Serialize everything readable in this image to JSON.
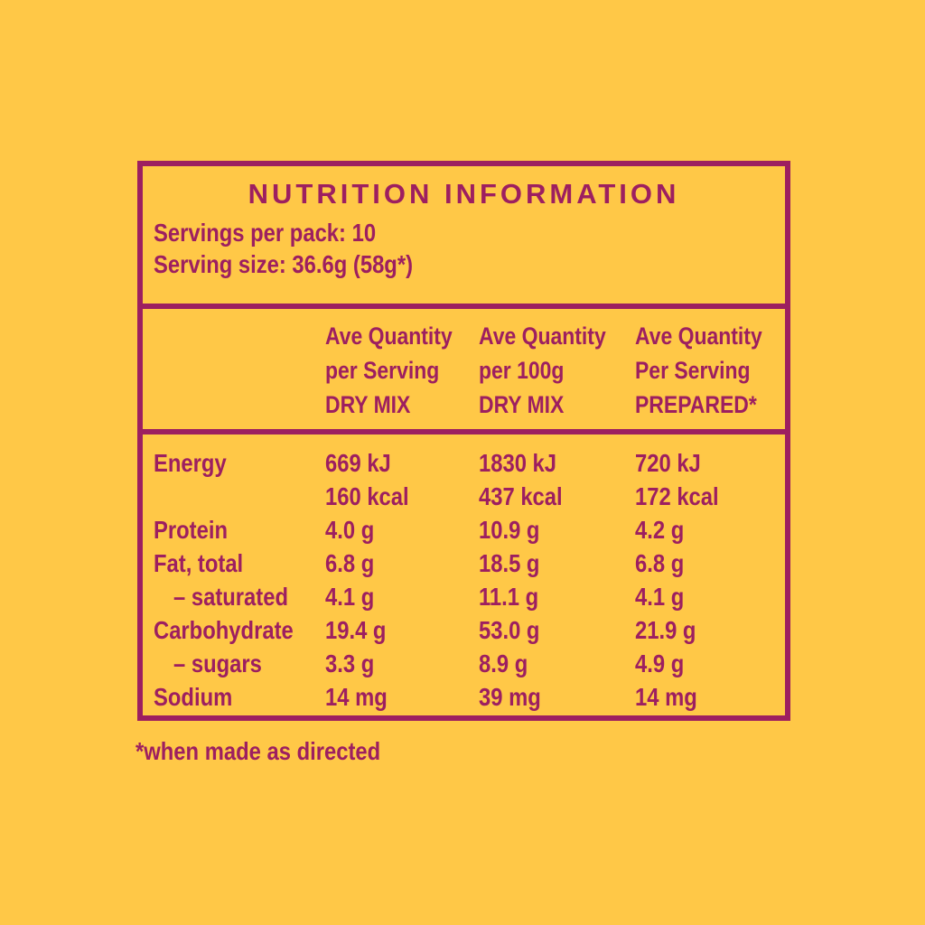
{
  "colors": {
    "background": "#FFC847",
    "text": "#9D1F60"
  },
  "panel": {
    "title": "NUTRITION INFORMATION",
    "serving_info": [
      "Servings per pack: 10",
      "Serving size: 36.6g (58g*)"
    ],
    "columns": [
      {
        "lines": [
          "Ave Quantity",
          "per Serving",
          "DRY MIX"
        ]
      },
      {
        "lines": [
          "Ave Quantity",
          "per 100g",
          "DRY MIX"
        ]
      },
      {
        "lines": [
          "Ave Quantity",
          "Per Serving",
          "PREPARED*"
        ]
      }
    ],
    "rows": [
      {
        "label": "Energy",
        "values": [
          "669 kJ",
          "1830 kJ",
          "720 kJ"
        ]
      },
      {
        "label": "",
        "values": [
          "160 kcal",
          "437 kcal",
          "172 kcal"
        ]
      },
      {
        "label": "Protein",
        "values": [
          "4.0 g",
          "10.9 g",
          "4.2 g"
        ]
      },
      {
        "label": "Fat, total",
        "values": [
          "6.8 g",
          "18.5 g",
          "6.8 g"
        ]
      },
      {
        "label": "– saturated",
        "values": [
          "4.1 g",
          "11.1 g",
          "4.1 g"
        ],
        "indent": true
      },
      {
        "label": "Carbohydrate",
        "values": [
          "19.4 g",
          "53.0 g",
          "21.9 g"
        ]
      },
      {
        "label": "– sugars",
        "values": [
          "3.3 g",
          "8.9 g",
          "4.9 g"
        ],
        "indent": true
      },
      {
        "label": "Sodium",
        "values": [
          "14 mg",
          "39 mg",
          "14 mg"
        ]
      }
    ]
  },
  "footnote": "*when made as directed"
}
